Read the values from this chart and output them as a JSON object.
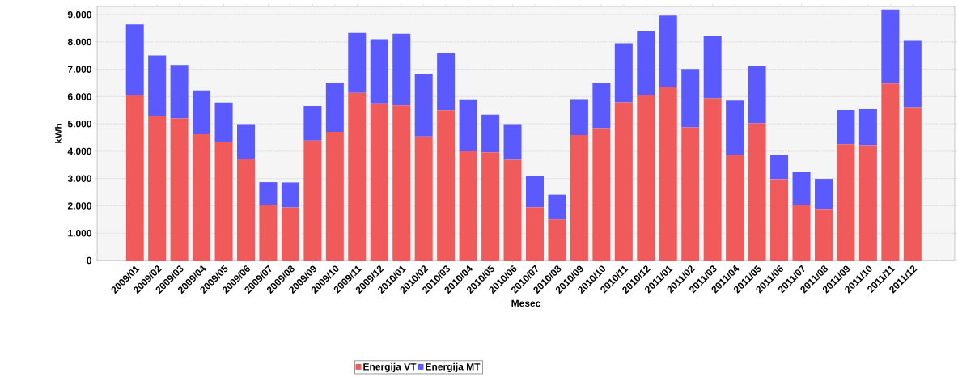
{
  "chart_data": {
    "type": "bar",
    "stacked": true,
    "xlabel": "Mesec",
    "ylabel": "kWh",
    "categories": [
      "2009/01",
      "2009/02",
      "2009/03",
      "2009/04",
      "2009/05",
      "2009/06",
      "2009/07",
      "2009/08",
      "2009/09",
      "2009/10",
      "2009/11",
      "2009/12",
      "2010/01",
      "2010/02",
      "2010/03",
      "2010/04",
      "2010/05",
      "2010/06",
      "2010/07",
      "2010/08",
      "2010/09",
      "2010/10",
      "2010/11",
      "2010/12",
      "2011/01",
      "2011/02",
      "2011/03",
      "2011/04",
      "2011/05",
      "2011/06",
      "2011/07",
      "2011/08",
      "2011/09",
      "2011/10",
      "2011/11",
      "2011/12"
    ],
    "series": [
      {
        "name": "Energija VT",
        "color": "#f05a5a",
        "values": [
          6050,
          5280,
          5200,
          4620,
          4330,
          3710,
          2030,
          1940,
          4390,
          4710,
          6140,
          5750,
          5680,
          4540,
          5500,
          4000,
          3960,
          3690,
          1950,
          1500,
          4590,
          4840,
          5790,
          6040,
          6340,
          4870,
          5940,
          3850,
          5020,
          2980,
          2020,
          1890,
          4260,
          4220,
          6480,
          5610
        ]
      },
      {
        "name": "Energija MT",
        "color": "#5a5aff",
        "values": [
          2590,
          2230,
          1960,
          1610,
          1450,
          1280,
          840,
          920,
          1270,
          1800,
          2190,
          2350,
          2620,
          2300,
          2100,
          1900,
          1380,
          1300,
          1140,
          910,
          1320,
          1660,
          2160,
          2370,
          2630,
          2140,
          2290,
          2010,
          2100,
          900,
          1230,
          1100,
          1250,
          1320,
          2710,
          2430
        ]
      }
    ],
    "ylim": [
      0,
      9300
    ],
    "yticks": [
      {
        "value": 0,
        "label": "0"
      },
      {
        "value": 1000,
        "label": "1.000"
      },
      {
        "value": 2000,
        "label": "2.000"
      },
      {
        "value": 3000,
        "label": "3.000"
      },
      {
        "value": 4000,
        "label": "4.000"
      },
      {
        "value": 5000,
        "label": "5.000"
      },
      {
        "value": 6000,
        "label": "6.000"
      },
      {
        "value": 7000,
        "label": "7.000"
      },
      {
        "value": 8000,
        "label": "8.000"
      },
      {
        "value": 9000,
        "label": "9.000"
      }
    ],
    "grid": "y",
    "legend": "bottom"
  }
}
